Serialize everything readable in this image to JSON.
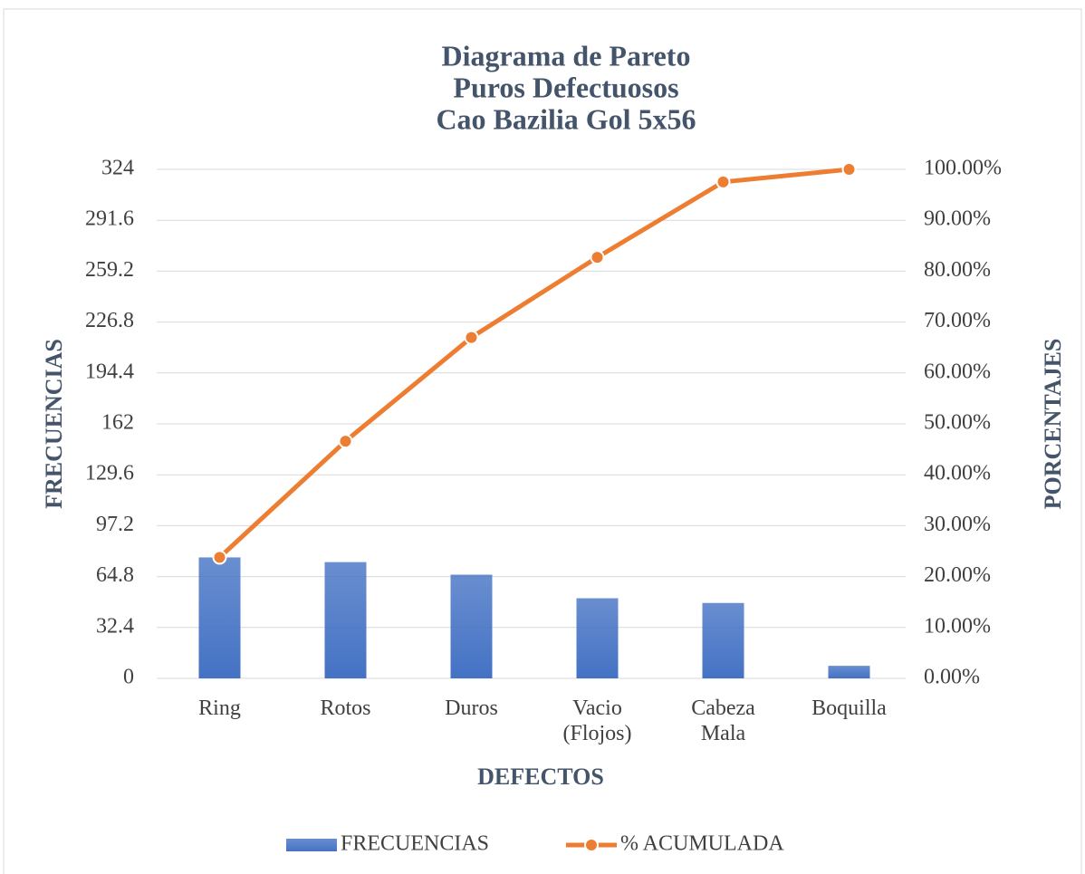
{
  "chart_data": {
    "type": "bar",
    "title": [
      "Diagrama de Pareto",
      "Puros Defectuosos",
      "Cao Bazilia Gol 5x56"
    ],
    "x_label": "DEFECTOS",
    "y_label": "FRECUENCIAS",
    "y2_label": "PORCENTAJES",
    "categories": [
      "Ring",
      "Rotos",
      "Duros",
      "Vacio (Flojos)",
      "Cabeza Mala",
      "Boquilla"
    ],
    "series": [
      {
        "name": "FRECUENCIAS",
        "type": "bar",
        "color": "#4472c4",
        "values": [
          77,
          74,
          66,
          51,
          48,
          8
        ]
      },
      {
        "name": "% ACUMULADA",
        "type": "line",
        "axis": "y2",
        "color": "#ed7d31",
        "values": [
          23.77,
          46.6,
          66.98,
          82.72,
          97.53,
          100
        ]
      }
    ],
    "ylim": [
      0,
      324
    ],
    "yticks": [
      0,
      32.4,
      64.8,
      97.2,
      129.6,
      162,
      194.4,
      226.8,
      259.2,
      291.6,
      324
    ],
    "y2lim": [
      0,
      100
    ],
    "y2ticks": [
      {
        "value": 0,
        "label": "0.00%"
      },
      {
        "value": 10,
        "label": "10.00%"
      },
      {
        "value": 20,
        "label": "20.00%"
      },
      {
        "value": 30,
        "label": "30.00%"
      },
      {
        "value": 40,
        "label": "40.00%"
      },
      {
        "value": 50,
        "label": "50.00%"
      },
      {
        "value": 60,
        "label": "60.00%"
      },
      {
        "value": 70,
        "label": "70.00%"
      },
      {
        "value": 80,
        "label": "80.00%"
      },
      {
        "value": 90,
        "label": "90.00%"
      },
      {
        "value": 100,
        "label": "100.00%"
      }
    ],
    "grid": true,
    "legend": "bottom"
  }
}
